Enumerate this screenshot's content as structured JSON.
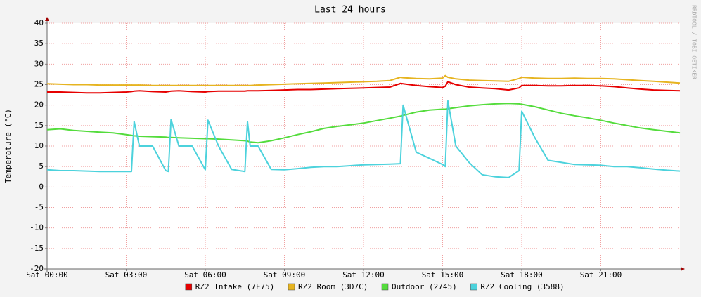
{
  "chart_data": {
    "type": "line",
    "title": "Last 24 hours",
    "y_label": "Temperature (°C)",
    "watermark": "RRDTOOL / TOBI OETIKER",
    "x": [
      0,
      0.5,
      1,
      1.5,
      2,
      2.5,
      3,
      3.2,
      3.3,
      3.5,
      4,
      4.5,
      4.6,
      4.7,
      5,
      5.5,
      6,
      6.1,
      6.5,
      7,
      7.5,
      7.6,
      7.7,
      8,
      8.5,
      9,
      9.5,
      10,
      10.5,
      11,
      11.5,
      12,
      12.5,
      13,
      13.4,
      13.5,
      14,
      14.5,
      15,
      15.1,
      15.2,
      15.5,
      16,
      16.5,
      17,
      17.5,
      17.9,
      18,
      18.5,
      19,
      19.5,
      20,
      20.5,
      21,
      21.5,
      22,
      22.5,
      23,
      23.5,
      24
    ],
    "series": [
      {
        "name": "RZ2 Intake (7F75)",
        "color": "#e60000",
        "values": [
          23.2,
          23.2,
          23.1,
          23,
          23,
          23.1,
          23.2,
          23.3,
          23.4,
          23.5,
          23.3,
          23.2,
          23.3,
          23.4,
          23.5,
          23.3,
          23.2,
          23.3,
          23.4,
          23.4,
          23.4,
          23.5,
          23.5,
          23.5,
          23.6,
          23.7,
          23.8,
          23.8,
          23.9,
          24,
          24.1,
          24.2,
          24.3,
          24.4,
          25.3,
          25.2,
          24.8,
          24.5,
          24.3,
          24.6,
          25.7,
          25,
          24.4,
          24.2,
          24,
          23.7,
          24.2,
          24.8,
          24.8,
          24.7,
          24.7,
          24.8,
          24.8,
          24.7,
          24.5,
          24.2,
          23.9,
          23.7,
          23.6,
          23.5
        ]
      },
      {
        "name": "RZ2 Room (3D7C)",
        "color": "#e6b420",
        "values": [
          25.2,
          25.1,
          25,
          25,
          24.9,
          24.9,
          24.9,
          24.9,
          24.9,
          24.9,
          24.8,
          24.8,
          24.8,
          24.8,
          24.8,
          24.8,
          24.8,
          24.8,
          24.8,
          24.8,
          24.8,
          24.8,
          24.8,
          24.9,
          25,
          25.1,
          25.2,
          25.3,
          25.4,
          25.5,
          25.6,
          25.7,
          25.8,
          26,
          26.8,
          26.7,
          26.5,
          26.4,
          26.6,
          27.2,
          26.8,
          26.4,
          26.1,
          26,
          25.9,
          25.8,
          26.5,
          26.8,
          26.6,
          26.5,
          26.5,
          26.6,
          26.5,
          26.5,
          26.4,
          26.2,
          26,
          25.8,
          25.6,
          25.4
        ]
      },
      {
        "name": "Outdoor (2745)",
        "color": "#54dc3c",
        "values": [
          14,
          14.2,
          13.8,
          13.6,
          13.4,
          13.2,
          12.8,
          12.6,
          12.5,
          12.4,
          12.3,
          12.2,
          12.1,
          12.1,
          12,
          11.9,
          11.8,
          11.8,
          11.7,
          11.5,
          11.3,
          11.2,
          11,
          10.8,
          11.3,
          12,
          12.8,
          13.5,
          14.3,
          14.8,
          15.2,
          15.6,
          16.2,
          16.8,
          17.3,
          17.5,
          18.3,
          18.8,
          19,
          19,
          19.1,
          19.4,
          19.8,
          20.1,
          20.3,
          20.4,
          20.3,
          20.2,
          19.6,
          18.8,
          18,
          17.4,
          16.9,
          16.3,
          15.6,
          15,
          14.4,
          14,
          13.6,
          13.2
        ]
      },
      {
        "name": "RZ2 Cooling (3588)",
        "color": "#4cd2dc",
        "values": [
          4.2,
          4,
          4,
          3.9,
          3.8,
          3.8,
          3.8,
          3.8,
          16,
          10,
          10,
          4,
          3.8,
          16.5,
          10,
          10,
          4.2,
          16.3,
          10,
          4.3,
          3.8,
          16,
          10,
          10,
          4.3,
          4.2,
          4.5,
          4.8,
          5,
          5,
          5.2,
          5.4,
          5.5,
          5.6,
          5.7,
          20,
          8.5,
          7,
          5.5,
          5,
          21,
          10,
          6,
          3,
          2.5,
          2.3,
          4,
          18.5,
          12,
          6.5,
          6,
          5.5,
          5.4,
          5.3,
          5,
          5,
          4.7,
          4.4,
          4.1,
          3.9
        ]
      }
    ],
    "xlim": [
      0,
      24
    ],
    "xticks": [
      {
        "value": 0,
        "label": "Sat 00:00"
      },
      {
        "value": 3,
        "label": "Sat 03:00"
      },
      {
        "value": 6,
        "label": "Sat 06:00"
      },
      {
        "value": 9,
        "label": "Sat 09:00"
      },
      {
        "value": 12,
        "label": "Sat 12:00"
      },
      {
        "value": 15,
        "label": "Sat 15:00"
      },
      {
        "value": 18,
        "label": "Sat 18:00"
      },
      {
        "value": 21,
        "label": "Sat 21:00"
      }
    ],
    "ylim": [
      -20,
      40
    ],
    "yticks": [
      -20,
      -15,
      -10,
      -5,
      0,
      5,
      10,
      15,
      20,
      25,
      30,
      35,
      40
    ],
    "grid": true
  }
}
